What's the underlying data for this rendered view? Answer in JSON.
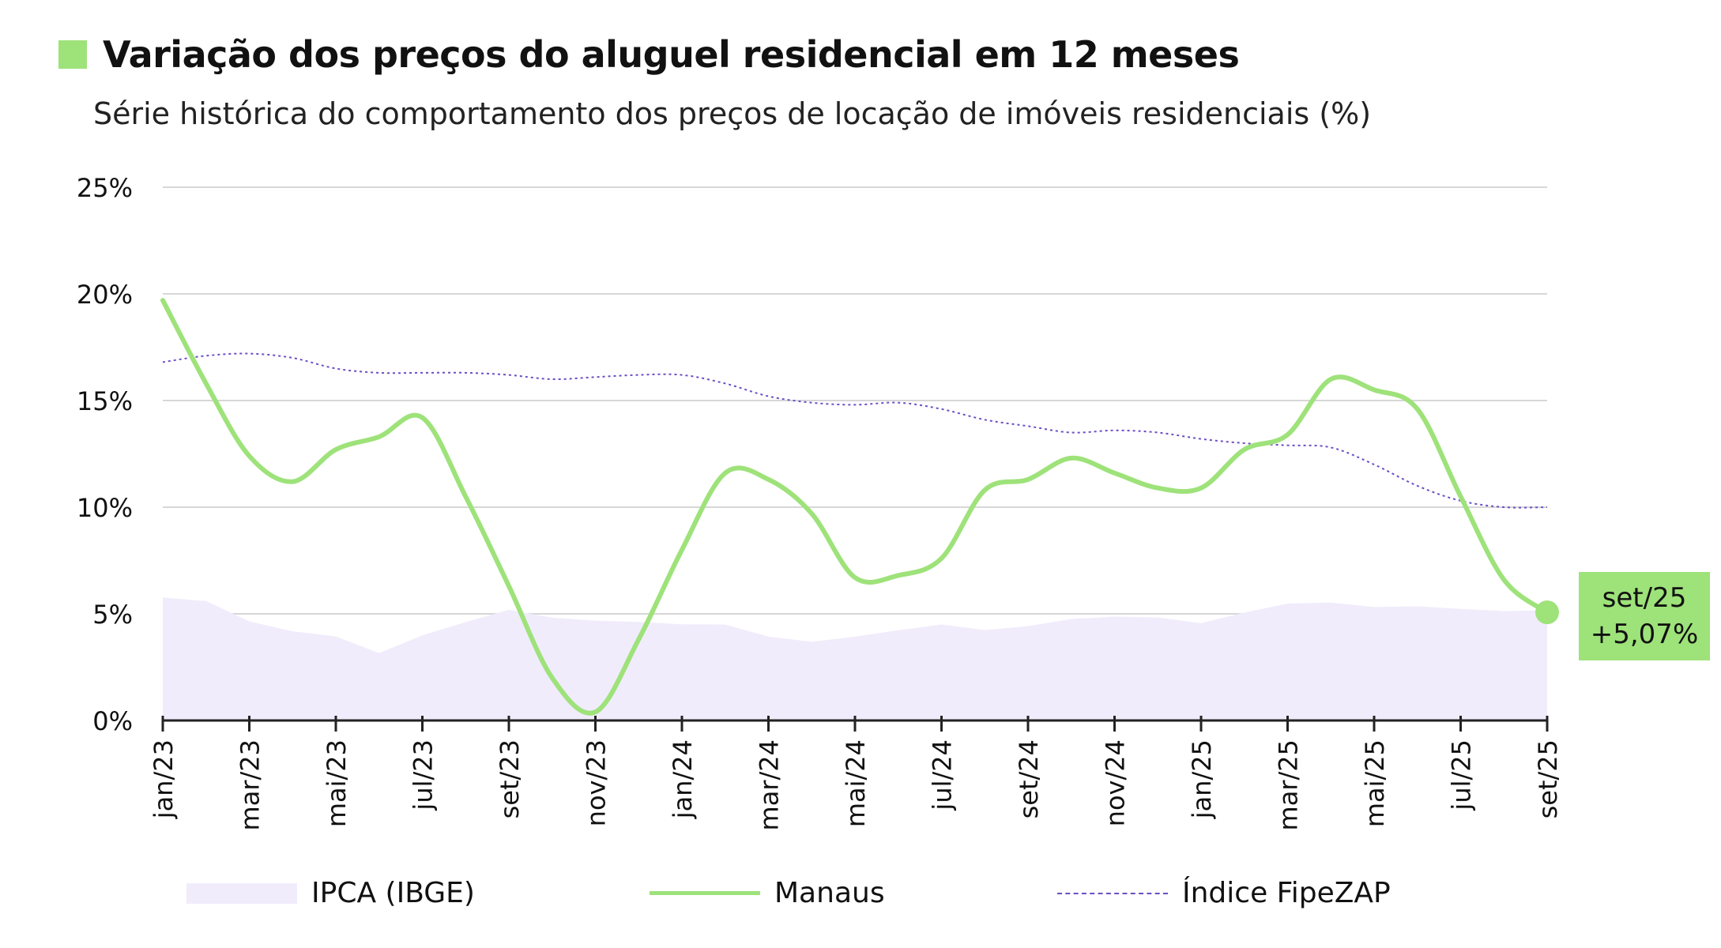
{
  "title": "Variação dos preços do aluguel residencial em 12 meses",
  "subtitle": "Série histórica do comportamento dos preços de locação de imóveis residenciais (%)",
  "colors": {
    "accent": "#9ee27a",
    "manaus": "#9ee27a",
    "ipca_fill": "#f1ecfb",
    "fipezap": "#6b4fc4",
    "grid": "#d7d7d7",
    "axis": "#222222"
  },
  "callout": {
    "label": "set/25",
    "value": "+5,07%"
  },
  "legend": [
    {
      "name": "IPCA (IBGE)",
      "style": "area"
    },
    {
      "name": "Manaus",
      "style": "line"
    },
    {
      "name": "Índice FipeZAP",
      "style": "dotted"
    }
  ],
  "chart_data": {
    "type": "line",
    "title": "Variação dos preços do aluguel residencial em 12 meses",
    "ylabel": "%",
    "ylim": [
      0,
      25
    ],
    "yticks": [
      0,
      5,
      10,
      15,
      20,
      25
    ],
    "ytick_labels": [
      "0%",
      "5%",
      "10%",
      "15%",
      "20%",
      "25%"
    ],
    "x": [
      "jan/23",
      "fev/23",
      "mar/23",
      "abr/23",
      "mai/23",
      "jun/23",
      "jul/23",
      "ago/23",
      "set/23",
      "out/23",
      "nov/23",
      "dez/23",
      "jan/24",
      "fev/24",
      "mar/24",
      "abr/24",
      "mai/24",
      "jun/24",
      "jul/24",
      "ago/24",
      "set/24",
      "out/24",
      "nov/24",
      "dez/24",
      "jan/25",
      "fev/25",
      "mar/25",
      "abr/25",
      "mai/25",
      "jun/25",
      "jul/25",
      "ago/25",
      "set/25"
    ],
    "xtick_labels": [
      "jan/23",
      "mar/23",
      "mai/23",
      "jul/23",
      "set/23",
      "nov/23",
      "jan/24",
      "mar/24",
      "mai/24",
      "jul/24",
      "set/24",
      "nov/24",
      "jan/25",
      "mar/25",
      "mai/25",
      "jul/25",
      "set/25"
    ],
    "series": [
      {
        "name": "IPCA (IBGE)",
        "type": "area",
        "values": [
          5.77,
          5.6,
          4.65,
          4.18,
          3.94,
          3.16,
          3.99,
          4.61,
          5.19,
          4.82,
          4.68,
          4.62,
          4.51,
          4.5,
          3.93,
          3.69,
          3.93,
          4.23,
          4.5,
          4.24,
          4.42,
          4.76,
          4.87,
          4.83,
          4.56,
          5.06,
          5.48,
          5.53,
          5.32,
          5.35,
          5.23,
          5.13,
          5.17
        ]
      },
      {
        "name": "Manaus",
        "type": "line",
        "values": [
          19.7,
          15.8,
          12.4,
          11.2,
          12.7,
          13.3,
          14.2,
          10.5,
          6.3,
          2.0,
          0.4,
          3.8,
          8.0,
          11.6,
          11.3,
          9.7,
          6.7,
          6.8,
          7.6,
          10.8,
          11.3,
          12.3,
          11.6,
          10.9,
          10.9,
          12.7,
          13.4,
          16.0,
          15.5,
          14.6,
          10.5,
          6.6,
          5.07
        ]
      },
      {
        "name": "Índice FipeZAP",
        "type": "dotted",
        "values": [
          16.8,
          17.1,
          17.2,
          17.0,
          16.5,
          16.3,
          16.3,
          16.3,
          16.2,
          16.0,
          16.1,
          16.2,
          16.2,
          15.8,
          15.2,
          14.9,
          14.8,
          14.9,
          14.6,
          14.1,
          13.8,
          13.5,
          13.6,
          13.5,
          13.2,
          13.0,
          12.9,
          12.8,
          12.0,
          11.0,
          10.3,
          10.0,
          10.0
        ]
      }
    ],
    "highlight": {
      "x": "set/25",
      "series": "Manaus",
      "value": 5.07
    }
  }
}
